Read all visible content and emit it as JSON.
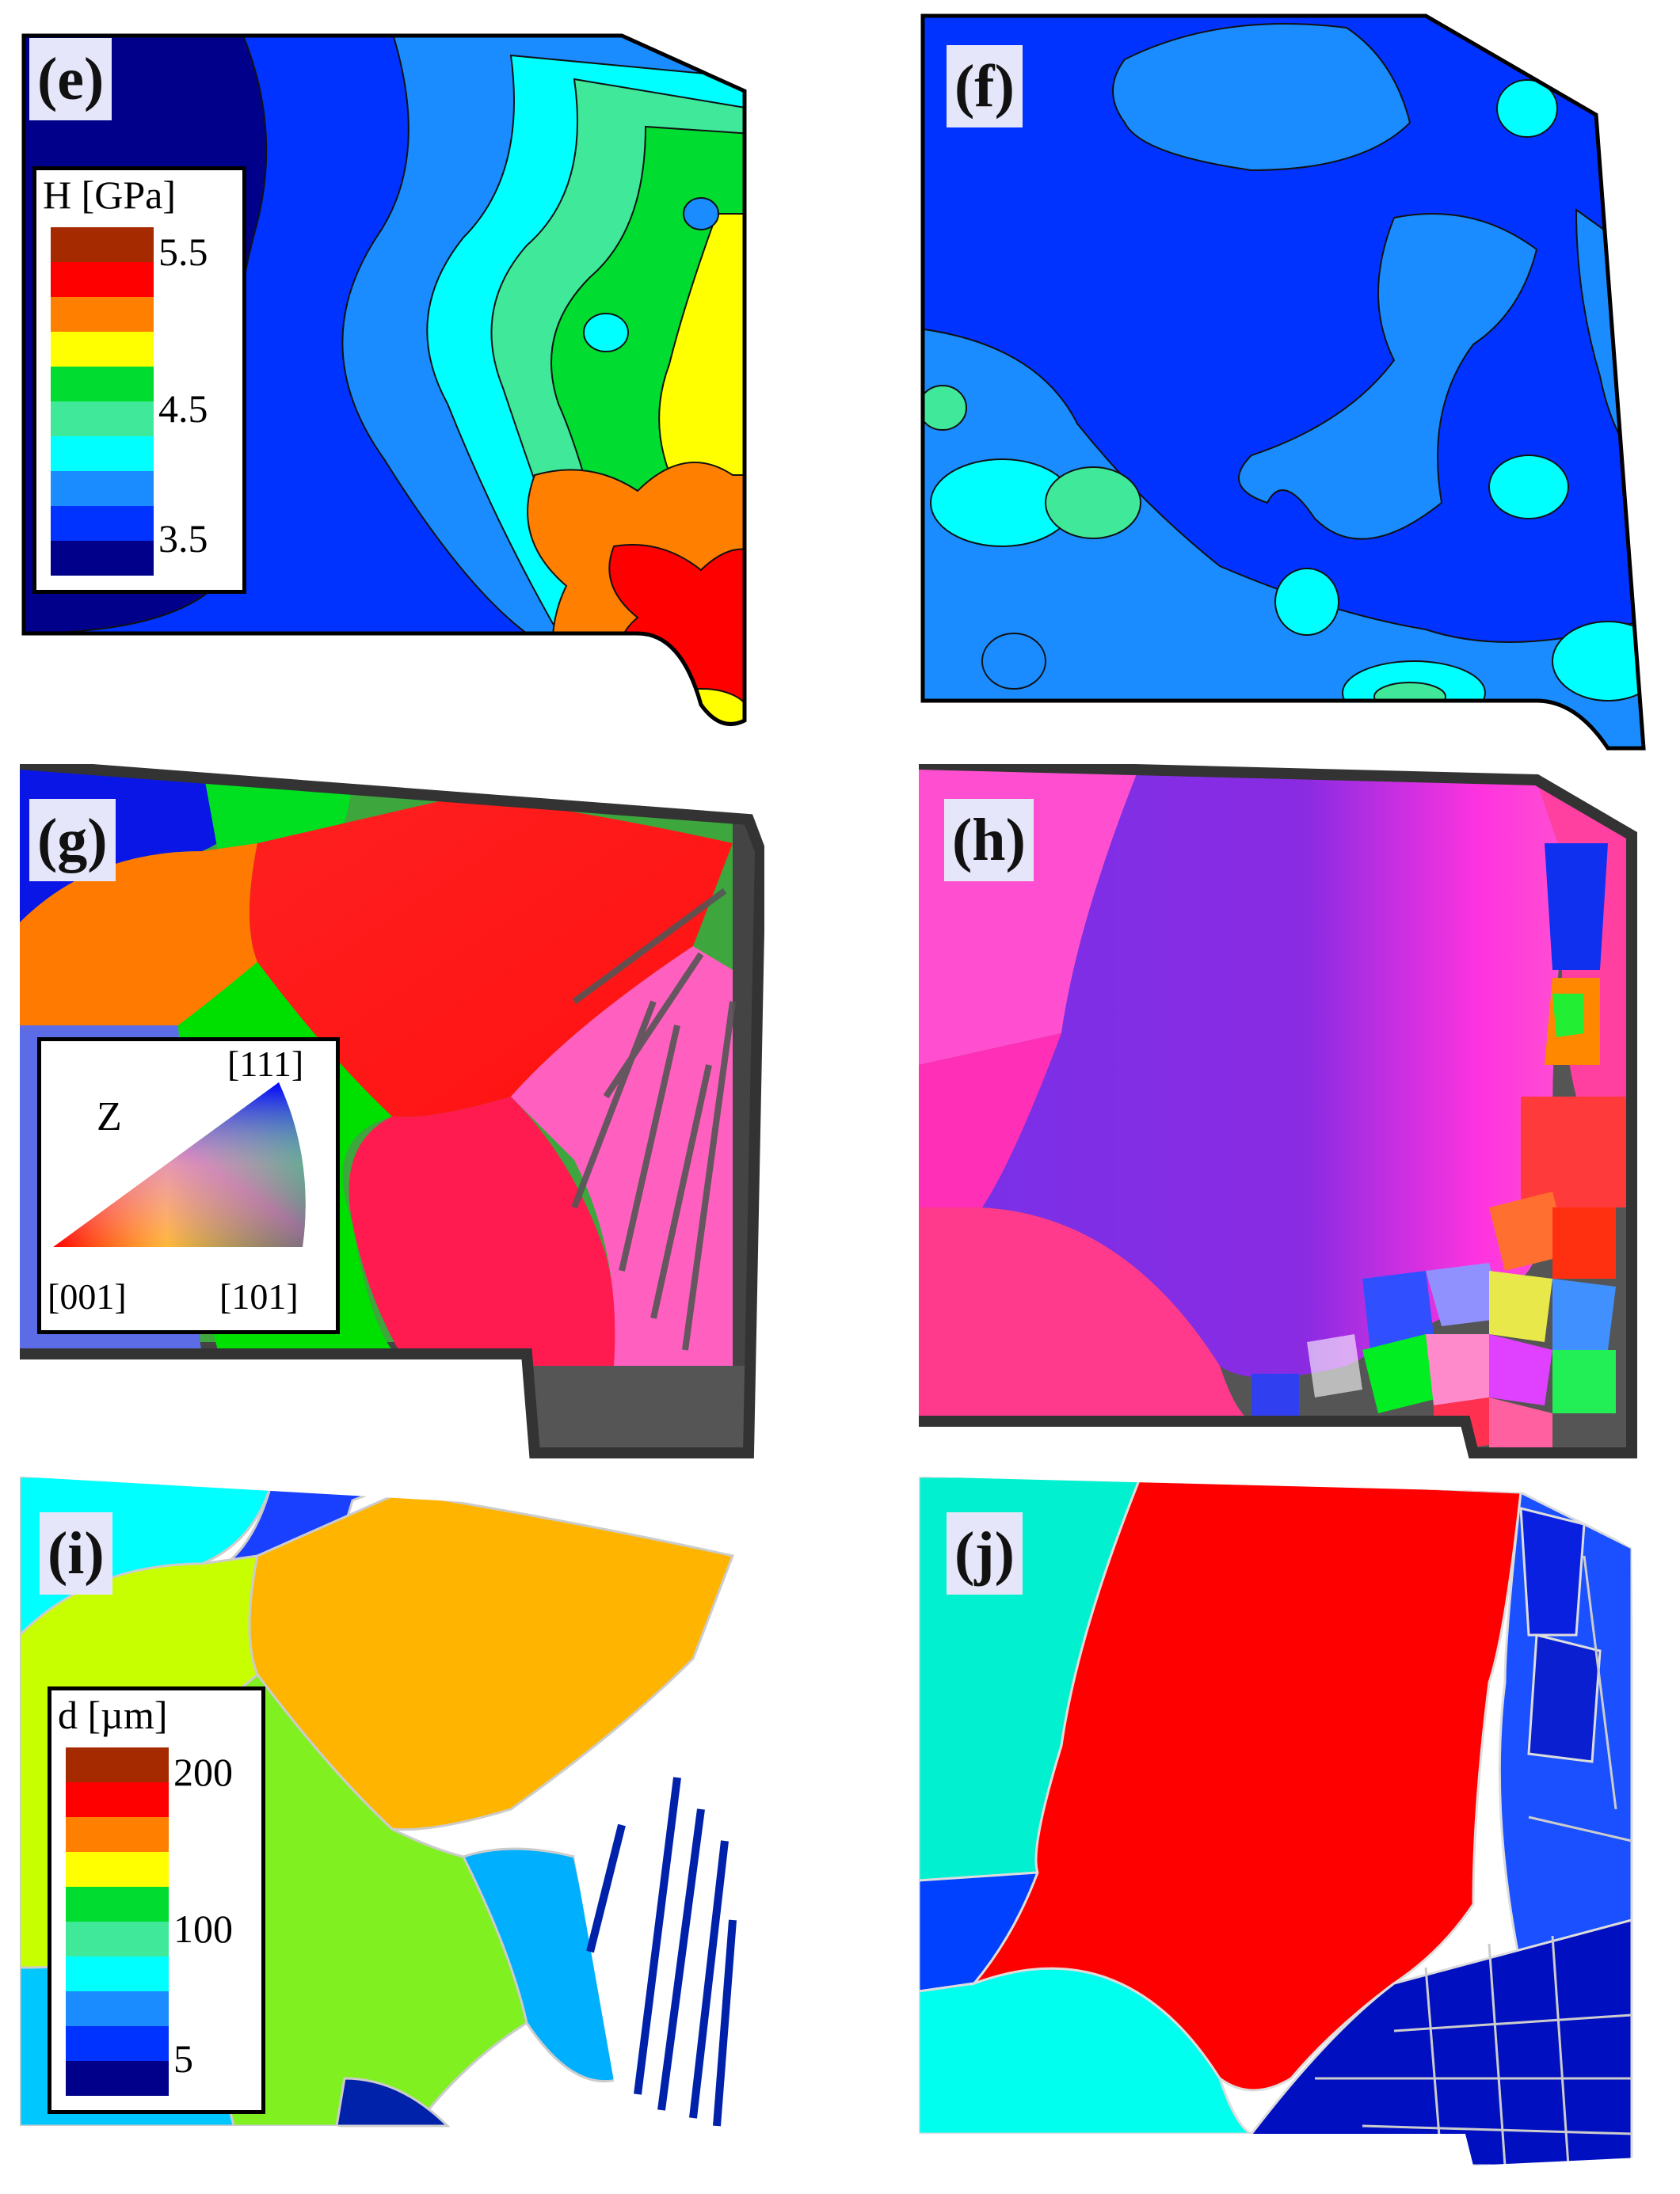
{
  "panels": {
    "e": {
      "label": "(e)"
    },
    "f": {
      "label": "(f)"
    },
    "g": {
      "label": "(g)"
    },
    "h": {
      "label": "(h)"
    },
    "i": {
      "label": "(i)"
    },
    "j": {
      "label": "(j)"
    }
  },
  "hardness_legend": {
    "title": "H [GPa]",
    "ticks": [
      "5.5",
      "4.5",
      "3.5"
    ],
    "colors": [
      "#a52a00",
      "#ff0000",
      "#ff8000",
      "#ffff00",
      "#00dd30",
      "#40e89a",
      "#00ffff",
      "#1a8cff",
      "#0033ff",
      "#00008b"
    ]
  },
  "ipf_legend": {
    "axis": "Z",
    "corner_top": "[111]",
    "corner_left": "[001]",
    "corner_right": "[101]"
  },
  "grain_size_legend": {
    "title": "d [µm]",
    "ticks": [
      "200",
      "100",
      "5"
    ],
    "colors": [
      "#a52a00",
      "#ff0000",
      "#ff8000",
      "#ffff00",
      "#00dd30",
      "#40e89a",
      "#00ffff",
      "#1a8cff",
      "#0033ff",
      "#00008b"
    ]
  }
}
